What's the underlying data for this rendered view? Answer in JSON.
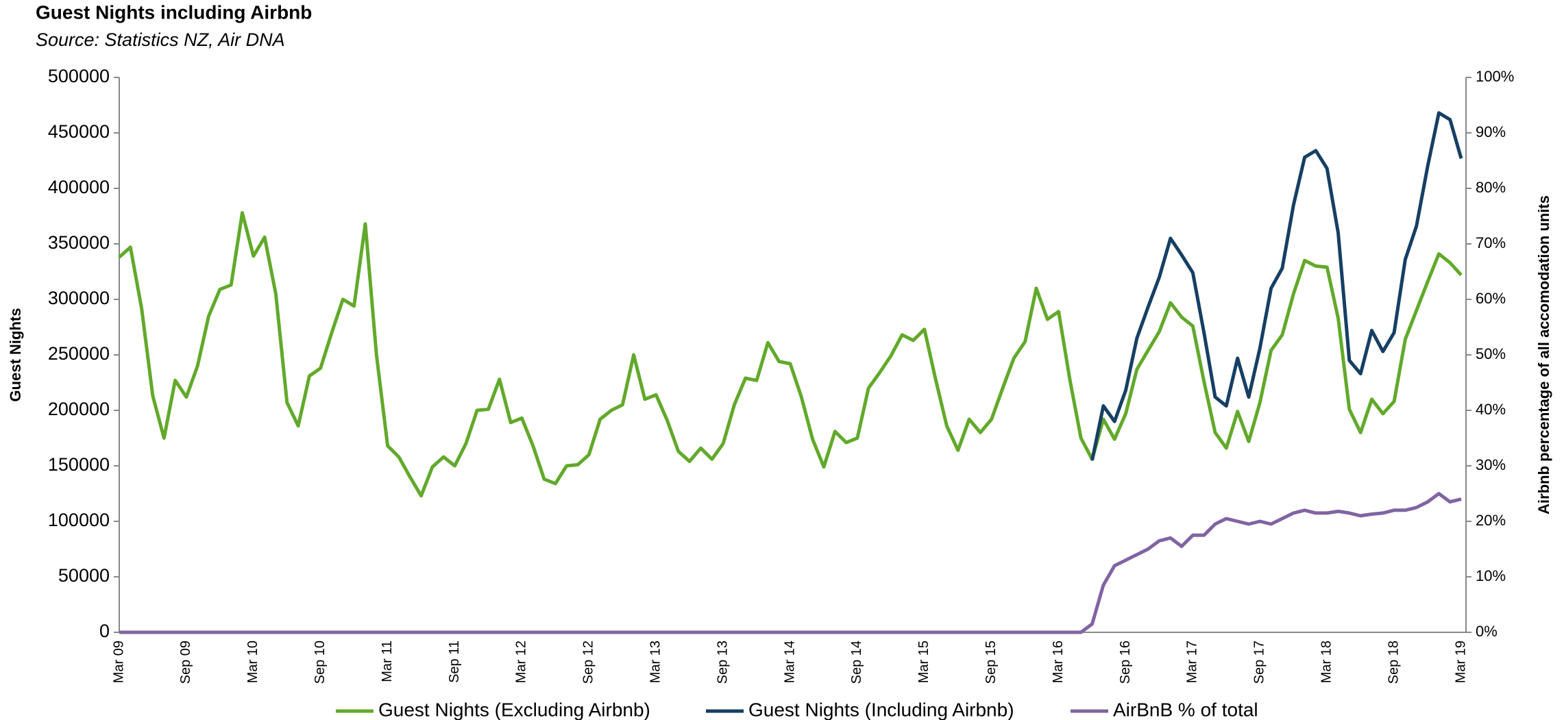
{
  "chart_data": {
    "type": "line",
    "title": "Guest Nights including Airbnb",
    "subtitle": "Source: Statistics NZ, Air DNA",
    "y_label": "Guest Nights",
    "y2_label": "Airbnb percentage of all accomodation  units",
    "categories": [
      "Mar 09",
      null,
      null,
      null,
      null,
      null,
      "Sep 09",
      null,
      null,
      null,
      null,
      null,
      "Mar 10",
      null,
      null,
      null,
      null,
      null,
      "Sep 10",
      null,
      null,
      null,
      null,
      null,
      "Mar 11",
      null,
      null,
      null,
      null,
      null,
      "Sep 11",
      null,
      null,
      null,
      null,
      null,
      "Mar 12",
      null,
      null,
      null,
      null,
      null,
      "Sep 12",
      null,
      null,
      null,
      null,
      null,
      "Mar 13",
      null,
      null,
      null,
      null,
      null,
      "Sep 13",
      null,
      null,
      null,
      null,
      null,
      "Mar 14",
      null,
      null,
      null,
      null,
      null,
      "Sep 14",
      null,
      null,
      null,
      null,
      null,
      "Mar 15",
      null,
      null,
      null,
      null,
      null,
      "Sep 15",
      null,
      null,
      null,
      null,
      null,
      "Mar 16",
      null,
      null,
      null,
      null,
      null,
      "Sep 16",
      null,
      null,
      null,
      null,
      null,
      "Mar 17",
      null,
      null,
      null,
      null,
      null,
      "Sep 17",
      null,
      null,
      null,
      null,
      null,
      "Mar 18",
      null,
      null,
      null,
      null,
      null,
      "Sep 18",
      null,
      null,
      null,
      null,
      null,
      "Mar 19"
    ],
    "series": [
      {
        "name": "Guest Nights (Excluding Airbnb)",
        "color": "#62a92b",
        "axis": "y",
        "values": [
          338000,
          347000,
          292000,
          213000,
          175000,
          227000,
          212000,
          240000,
          285000,
          309000,
          313000,
          378000,
          339000,
          356000,
          305000,
          207000,
          186000,
          231000,
          238000,
          270000,
          300000,
          294000,
          368000,
          250000,
          168000,
          158000,
          140000,
          123000,
          149000,
          158000,
          150000,
          170000,
          200000,
          201000,
          228000,
          189000,
          193000,
          168000,
          138000,
          134000,
          150000,
          151000,
          160000,
          192000,
          200000,
          205000,
          250000,
          210000,
          214000,
          191000,
          163000,
          154000,
          166000,
          156000,
          170000,
          205000,
          229000,
          227000,
          261000,
          244000,
          242000,
          212000,
          174000,
          149000,
          181000,
          171000,
          175000,
          220000,
          234000,
          249000,
          268000,
          263000,
          273000,
          228000,
          186000,
          164000,
          192000,
          180000,
          192000,
          220000,
          247000,
          262000,
          310000,
          282000,
          289000,
          228000,
          175000,
          156000,
          192000,
          174000,
          197000,
          237000,
          254000,
          271000,
          297000,
          284000,
          276000,
          226000,
          180000,
          166000,
          199000,
          172000,
          207000,
          254000,
          268000,
          305000,
          335000,
          330000,
          329000,
          283000,
          201000,
          180000,
          210000,
          197000,
          208000,
          264000,
          290000,
          316000,
          341000,
          333000,
          322000
        ]
      },
      {
        "name": "Guest Nights (Including Airbnb)",
        "color": "#163f63",
        "axis": "y",
        "values": [
          null,
          null,
          null,
          null,
          null,
          null,
          null,
          null,
          null,
          null,
          null,
          null,
          null,
          null,
          null,
          null,
          null,
          null,
          null,
          null,
          null,
          null,
          null,
          null,
          null,
          null,
          null,
          null,
          null,
          null,
          null,
          null,
          null,
          null,
          null,
          null,
          null,
          null,
          null,
          null,
          null,
          null,
          null,
          null,
          null,
          null,
          null,
          null,
          null,
          null,
          null,
          null,
          null,
          null,
          null,
          null,
          null,
          null,
          null,
          null,
          null,
          null,
          null,
          null,
          null,
          null,
          null,
          null,
          null,
          null,
          null,
          null,
          null,
          null,
          null,
          null,
          null,
          null,
          null,
          null,
          null,
          null,
          null,
          null,
          null,
          null,
          null,
          155000,
          204000,
          190000,
          218000,
          265000,
          293000,
          320000,
          355000,
          340000,
          324000,
          270000,
          212000,
          204000,
          247000,
          212000,
          256000,
          310000,
          328000,
          385000,
          428000,
          434000,
          418000,
          360000,
          245000,
          233000,
          272000,
          253000,
          270000,
          336000,
          366000,
          420000,
          468000,
          462000,
          427000
        ]
      },
      {
        "name": "AirBnB % of total",
        "color": "#8064a2",
        "axis": "y2",
        "values": [
          0,
          0,
          0,
          0,
          0,
          0,
          0,
          0,
          0,
          0,
          0,
          0,
          0,
          0,
          0,
          0,
          0,
          0,
          0,
          0,
          0,
          0,
          0,
          0,
          0,
          0,
          0,
          0,
          0,
          0,
          0,
          0,
          0,
          0,
          0,
          0,
          0,
          0,
          0,
          0,
          0,
          0,
          0,
          0,
          0,
          0,
          0,
          0,
          0,
          0,
          0,
          0,
          0,
          0,
          0,
          0,
          0,
          0,
          0,
          0,
          0,
          0,
          0,
          0,
          0,
          0,
          0,
          0,
          0,
          0,
          0,
          0,
          0,
          0,
          0,
          0,
          0,
          0,
          0,
          0,
          0,
          0,
          0,
          0,
          0,
          0,
          0,
          1.5,
          8.5,
          12,
          13,
          14,
          15,
          16.5,
          17,
          15.5,
          17.5,
          17.5,
          19.5,
          20.5,
          20,
          19.5,
          20,
          19.5,
          20.5,
          21.5,
          22,
          21.5,
          21.5,
          21.8,
          21.5,
          21,
          21.3,
          21.5,
          22,
          22,
          22.5,
          23.5,
          25,
          23.5,
          24
        ]
      }
    ],
    "ylim": [
      0,
      500000
    ],
    "yticks": [
      0,
      50000,
      100000,
      150000,
      200000,
      250000,
      300000,
      350000,
      400000,
      450000,
      500000
    ],
    "y2lim": [
      0,
      100
    ],
    "y2ticks": [
      {
        "value": 0,
        "label": "0%"
      },
      {
        "value": 10,
        "label": "10%"
      },
      {
        "value": 20,
        "label": "20%"
      },
      {
        "value": 30,
        "label": "30%"
      },
      {
        "value": 40,
        "label": "40%"
      },
      {
        "value": 50,
        "label": "50%"
      },
      {
        "value": 60,
        "label": "60%"
      },
      {
        "value": 70,
        "label": "70%"
      },
      {
        "value": 80,
        "label": "80%"
      },
      {
        "value": 90,
        "label": "90%"
      },
      {
        "value": 100,
        "label": "100%"
      }
    ],
    "grid": false,
    "legend": "bottom"
  }
}
